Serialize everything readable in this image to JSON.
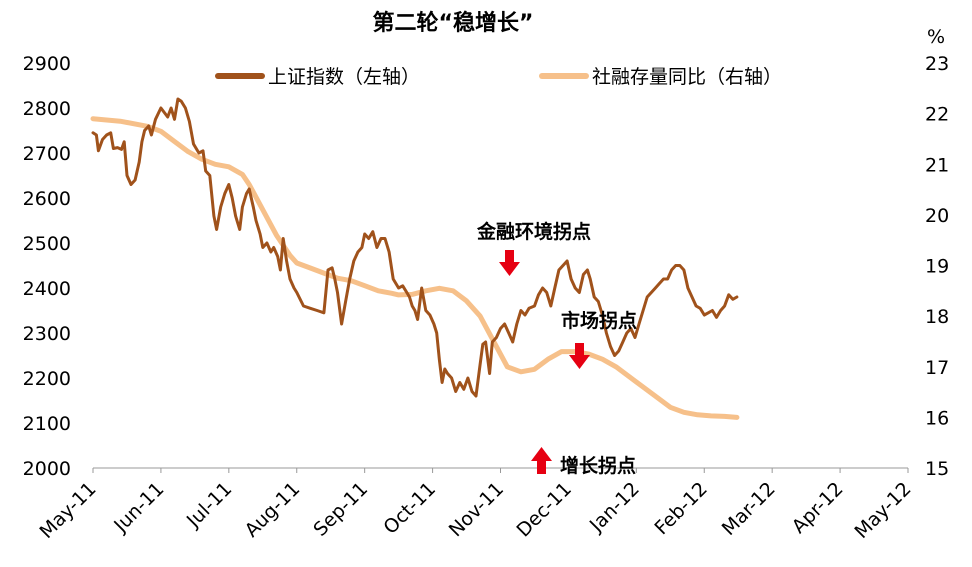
{
  "chart_data": {
    "type": "line",
    "title": "第二轮“稳增长”",
    "right_unit": "%",
    "x_ticks": [
      "May-11",
      "Jun-11",
      "Jul-11",
      "Aug-11",
      "Sep-11",
      "Oct-11",
      "Nov-11",
      "Dec-11",
      "Jan-12",
      "Feb-12",
      "Mar-12",
      "Apr-12",
      "May-12"
    ],
    "y_left": {
      "range": [
        2000,
        2900
      ],
      "ticks": [
        "2000",
        "2100",
        "2200",
        "2300",
        "2400",
        "2500",
        "2600",
        "2700",
        "2800",
        "2900"
      ]
    },
    "y_right": {
      "range": [
        15,
        23
      ],
      "ticks": [
        "15",
        "16",
        "17",
        "18",
        "19",
        "20",
        "21",
        "22",
        "23"
      ]
    },
    "series": [
      {
        "name": "上证指数（左轴）",
        "axis": "left",
        "color": "#a0521b",
        "points": [
          [
            0,
            2745
          ],
          [
            0.05,
            2740
          ],
          [
            0.08,
            2705
          ],
          [
            0.14,
            2730
          ],
          [
            0.2,
            2740
          ],
          [
            0.26,
            2745
          ],
          [
            0.3,
            2710
          ],
          [
            0.36,
            2712
          ],
          [
            0.42,
            2708
          ],
          [
            0.46,
            2725
          ],
          [
            0.5,
            2650
          ],
          [
            0.56,
            2630
          ],
          [
            0.62,
            2640
          ],
          [
            0.68,
            2680
          ],
          [
            0.72,
            2725
          ],
          [
            0.76,
            2750
          ],
          [
            0.82,
            2760
          ],
          [
            0.86,
            2740
          ],
          [
            0.92,
            2775
          ],
          [
            1.0,
            2800
          ],
          [
            1.05,
            2790
          ],
          [
            1.1,
            2780
          ],
          [
            1.15,
            2800
          ],
          [
            1.2,
            2775
          ],
          [
            1.25,
            2820
          ],
          [
            1.3,
            2815
          ],
          [
            1.36,
            2800
          ],
          [
            1.42,
            2770
          ],
          [
            1.48,
            2720
          ],
          [
            1.52,
            2710
          ],
          [
            1.56,
            2700
          ],
          [
            1.62,
            2705
          ],
          [
            1.66,
            2660
          ],
          [
            1.72,
            2650
          ],
          [
            1.78,
            2560
          ],
          [
            1.82,
            2530
          ],
          [
            1.88,
            2580
          ],
          [
            1.94,
            2610
          ],
          [
            2.0,
            2630
          ],
          [
            2.05,
            2600
          ],
          [
            2.1,
            2560
          ],
          [
            2.16,
            2530
          ],
          [
            2.2,
            2580
          ],
          [
            2.26,
            2610
          ],
          [
            2.3,
            2620
          ],
          [
            2.36,
            2580
          ],
          [
            2.4,
            2550
          ],
          [
            2.46,
            2520
          ],
          [
            2.5,
            2490
          ],
          [
            2.56,
            2500
          ],
          [
            2.62,
            2480
          ],
          [
            2.66,
            2490
          ],
          [
            2.72,
            2470
          ],
          [
            2.76,
            2440
          ],
          [
            2.8,
            2510
          ],
          [
            2.85,
            2460
          ],
          [
            2.9,
            2420
          ],
          [
            2.96,
            2400
          ],
          [
            3.0,
            2390
          ],
          [
            3.1,
            2360
          ],
          [
            3.2,
            2355
          ],
          [
            3.3,
            2350
          ],
          [
            3.4,
            2345
          ],
          [
            3.46,
            2440
          ],
          [
            3.52,
            2445
          ],
          [
            3.56,
            2420
          ],
          [
            3.6,
            2390
          ],
          [
            3.66,
            2320
          ],
          [
            3.72,
            2370
          ],
          [
            3.78,
            2420
          ],
          [
            3.84,
            2460
          ],
          [
            3.9,
            2480
          ],
          [
            3.96,
            2490
          ],
          [
            4.0,
            2520
          ],
          [
            4.06,
            2510
          ],
          [
            4.12,
            2525
          ],
          [
            4.18,
            2490
          ],
          [
            4.24,
            2510
          ],
          [
            4.3,
            2510
          ],
          [
            4.36,
            2480
          ],
          [
            4.42,
            2420
          ],
          [
            4.5,
            2400
          ],
          [
            4.56,
            2405
          ],
          [
            4.62,
            2390
          ],
          [
            4.66,
            2380
          ],
          [
            4.7,
            2360
          ],
          [
            4.74,
            2350
          ],
          [
            4.78,
            2330
          ],
          [
            4.84,
            2400
          ],
          [
            4.9,
            2350
          ],
          [
            4.96,
            2340
          ],
          [
            5.02,
            2320
          ],
          [
            5.06,
            2300
          ],
          [
            5.1,
            2240
          ],
          [
            5.14,
            2190
          ],
          [
            5.18,
            2220
          ],
          [
            5.22,
            2210
          ],
          [
            5.28,
            2200
          ],
          [
            5.34,
            2170
          ],
          [
            5.4,
            2190
          ],
          [
            5.46,
            2175
          ],
          [
            5.52,
            2200
          ],
          [
            5.58,
            2170
          ],
          [
            5.64,
            2160
          ],
          [
            5.7,
            2230
          ],
          [
            5.74,
            2275
          ],
          [
            5.78,
            2280
          ],
          [
            5.84,
            2210
          ],
          [
            5.88,
            2280
          ],
          [
            5.94,
            2290
          ],
          [
            6.0,
            2310
          ],
          [
            6.06,
            2320
          ],
          [
            6.12,
            2300
          ],
          [
            6.18,
            2280
          ],
          [
            6.24,
            2320
          ],
          [
            6.3,
            2350
          ],
          [
            6.36,
            2340
          ],
          [
            6.42,
            2355
          ],
          [
            6.5,
            2360
          ],
          [
            6.56,
            2385
          ],
          [
            6.62,
            2400
          ],
          [
            6.68,
            2390
          ],
          [
            6.74,
            2360
          ],
          [
            6.8,
            2400
          ],
          [
            6.86,
            2440
          ],
          [
            6.92,
            2450
          ],
          [
            6.98,
            2460
          ],
          [
            7.04,
            2420
          ],
          [
            7.1,
            2400
          ],
          [
            7.16,
            2390
          ],
          [
            7.22,
            2430
          ],
          [
            7.28,
            2440
          ],
          [
            7.32,
            2420
          ],
          [
            7.38,
            2380
          ],
          [
            7.44,
            2370
          ],
          [
            7.5,
            2340
          ],
          [
            7.56,
            2300
          ],
          [
            7.62,
            2270
          ],
          [
            7.68,
            2250
          ],
          [
            7.74,
            2260
          ],
          [
            7.8,
            2280
          ],
          [
            7.86,
            2300
          ],
          [
            7.92,
            2310
          ],
          [
            7.98,
            2290
          ],
          [
            8.04,
            2320
          ],
          [
            8.1,
            2350
          ],
          [
            8.16,
            2380
          ],
          [
            8.22,
            2390
          ],
          [
            8.28,
            2400
          ],
          [
            8.34,
            2410
          ],
          [
            8.4,
            2420
          ],
          [
            8.46,
            2420
          ],
          [
            8.52,
            2440
          ],
          [
            8.58,
            2450
          ],
          [
            8.64,
            2450
          ],
          [
            8.7,
            2440
          ],
          [
            8.76,
            2400
          ],
          [
            8.82,
            2380
          ],
          [
            8.88,
            2360
          ],
          [
            8.94,
            2355
          ],
          [
            9.0,
            2340
          ],
          [
            9.06,
            2345
          ],
          [
            9.12,
            2350
          ],
          [
            9.18,
            2335
          ],
          [
            9.24,
            2350
          ],
          [
            9.3,
            2360
          ],
          [
            9.36,
            2385
          ],
          [
            9.42,
            2375
          ],
          [
            9.48,
            2380
          ]
        ]
      },
      {
        "name": "社融存量同比（右轴）",
        "axis": "right",
        "color": "#f6c08a",
        "points": [
          [
            0,
            21.9
          ],
          [
            0.4,
            21.85
          ],
          [
            0.8,
            21.75
          ],
          [
            1.0,
            21.65
          ],
          [
            1.2,
            21.45
          ],
          [
            1.4,
            21.25
          ],
          [
            1.6,
            21.1
          ],
          [
            1.8,
            21.0
          ],
          [
            2.0,
            20.95
          ],
          [
            2.2,
            20.8
          ],
          [
            2.3,
            20.6
          ],
          [
            2.5,
            20.1
          ],
          [
            2.7,
            19.6
          ],
          [
            2.9,
            19.2
          ],
          [
            3.0,
            19.05
          ],
          [
            3.2,
            18.95
          ],
          [
            3.4,
            18.85
          ],
          [
            3.6,
            18.75
          ],
          [
            3.8,
            18.7
          ],
          [
            4.0,
            18.6
          ],
          [
            4.2,
            18.5
          ],
          [
            4.4,
            18.45
          ],
          [
            4.5,
            18.42
          ],
          [
            4.7,
            18.43
          ],
          [
            4.9,
            18.5
          ],
          [
            5.1,
            18.55
          ],
          [
            5.3,
            18.5
          ],
          [
            5.5,
            18.3
          ],
          [
            5.7,
            18.0
          ],
          [
            5.9,
            17.5
          ],
          [
            6.1,
            17.0
          ],
          [
            6.3,
            16.9
          ],
          [
            6.5,
            16.95
          ],
          [
            6.7,
            17.15
          ],
          [
            6.9,
            17.3
          ],
          [
            7.1,
            17.3
          ],
          [
            7.3,
            17.25
          ],
          [
            7.5,
            17.15
          ],
          [
            7.7,
            17.0
          ],
          [
            7.9,
            16.8
          ],
          [
            8.1,
            16.6
          ],
          [
            8.3,
            16.4
          ],
          [
            8.5,
            16.2
          ],
          [
            8.7,
            16.1
          ],
          [
            8.9,
            16.05
          ],
          [
            9.1,
            16.03
          ],
          [
            9.3,
            16.02
          ],
          [
            9.48,
            16.0
          ]
        ]
      }
    ],
    "annotations": [
      {
        "text": "金融环境拐点",
        "arrow": "down",
        "x": 4.55
      },
      {
        "text": "市场拐点",
        "arrow": "down",
        "x": 5.6
      },
      {
        "text": "增长拐点",
        "arrow": "up",
        "x": 5.0
      }
    ],
    "legend_position": "top"
  }
}
